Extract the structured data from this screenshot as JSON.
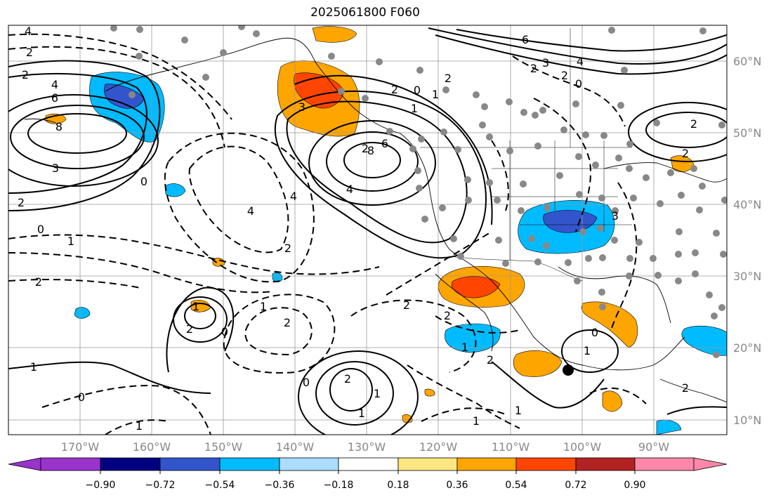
{
  "title": "2025061800 F060",
  "map": {
    "lon_labels": [
      "170°W",
      "160°W",
      "150°W",
      "140°W",
      "130°W",
      "120°W",
      "110°W",
      "100°W",
      "90°W"
    ],
    "lat_labels": [
      "60°N",
      "50°N",
      "40°N",
      "30°N",
      "20°N",
      "10°N"
    ],
    "label_color": "#888888",
    "contour_labels": [
      "4",
      "2",
      "2",
      "4",
      "6",
      "8",
      "3",
      "2",
      "0",
      "1",
      "2",
      "0",
      "2",
      "4",
      "6",
      "8",
      "4",
      "3",
      "2",
      "4",
      "2",
      "1",
      "0",
      "2",
      "1",
      "1",
      "2",
      "1",
      "2",
      "0",
      "2",
      "1",
      "2",
      "2",
      "1",
      "0",
      "1",
      "1",
      "0",
      "6",
      "4",
      "2",
      "3",
      "2",
      "0",
      "2",
      "3",
      "2",
      "1",
      "1",
      "0",
      "1",
      "1",
      "2",
      "2"
    ]
  },
  "colorbar": {
    "tick_labels": [
      "−0.90",
      "−0.72",
      "−0.54",
      "−0.36",
      "−0.18",
      "0.18",
      "0.36",
      "0.54",
      "0.72",
      "0.90"
    ],
    "colors": [
      "#9933cc",
      "#000080",
      "#3355cc",
      "#00bbff",
      "#aaddff",
      "#ffffff",
      "#ffe680",
      "#ffa500",
      "#ff4500",
      "#b22222",
      "#ff88aa"
    ]
  }
}
